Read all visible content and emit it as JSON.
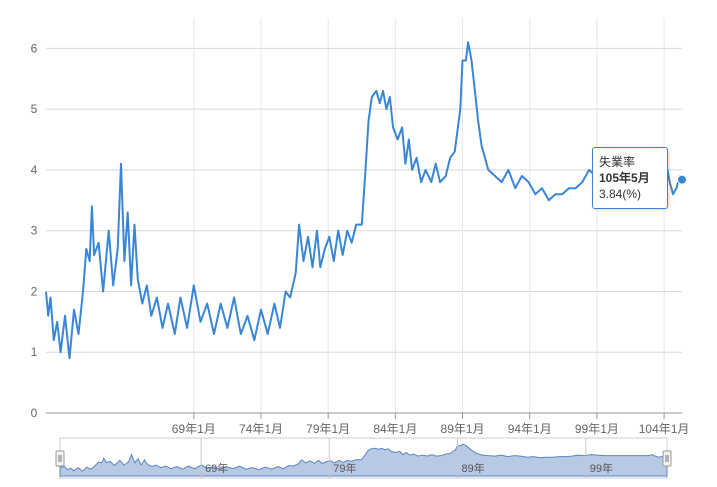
{
  "chart_data": {
    "type": "line",
    "x_start": "58年1月",
    "x_end": "105年5月",
    "x_ticks": [
      "69年1月",
      "74年1月",
      "79年1月",
      "84年1月",
      "89年1月",
      "94年1月",
      "99年1月",
      "104年1月"
    ],
    "y_ticks": [
      "0",
      "1",
      "2",
      "3",
      "4",
      "5",
      "6"
    ],
    "ylim": [
      0,
      6.5
    ],
    "grid": true,
    "series": [
      {
        "name": "失業率",
        "color": "#3a86d6",
        "points": [
          [
            "58年1月",
            2.0
          ],
          [
            "58年3月",
            1.6
          ],
          [
            "58年5月",
            1.9
          ],
          [
            "58年8月",
            1.2
          ],
          [
            "58年11月",
            1.5
          ],
          [
            "59年2月",
            1.0
          ],
          [
            "59年6月",
            1.6
          ],
          [
            "59年10月",
            0.9
          ],
          [
            "60年2月",
            1.7
          ],
          [
            "60年6月",
            1.3
          ],
          [
            "60年10月",
            2.0
          ],
          [
            "61年1月",
            2.7
          ],
          [
            "61年4月",
            2.5
          ],
          [
            "61年6月",
            3.4
          ],
          [
            "61年8月",
            2.6
          ],
          [
            "61年12月",
            2.8
          ],
          [
            "62年4月",
            2.0
          ],
          [
            "62年9月",
            3.0
          ],
          [
            "63年1月",
            2.1
          ],
          [
            "63年5月",
            2.7
          ],
          [
            "63年8月",
            4.1
          ],
          [
            "63年11月",
            2.5
          ],
          [
            "64年2月",
            3.3
          ],
          [
            "64年5月",
            2.1
          ],
          [
            "64年8月",
            3.1
          ],
          [
            "64年11月",
            2.2
          ],
          [
            "65年3月",
            1.8
          ],
          [
            "65年7月",
            2.1
          ],
          [
            "65年11月",
            1.6
          ],
          [
            "66年4月",
            1.9
          ],
          [
            "66年9月",
            1.4
          ],
          [
            "67年2月",
            1.8
          ],
          [
            "67年8月",
            1.3
          ],
          [
            "68年1月",
            1.9
          ],
          [
            "68年7月",
            1.4
          ],
          [
            "69年1月",
            2.1
          ],
          [
            "69年7月",
            1.5
          ],
          [
            "70年1月",
            1.8
          ],
          [
            "70年7月",
            1.3
          ],
          [
            "71年1月",
            1.8
          ],
          [
            "71年7月",
            1.4
          ],
          [
            "72年1月",
            1.9
          ],
          [
            "72年7月",
            1.3
          ],
          [
            "73年1月",
            1.6
          ],
          [
            "73年7月",
            1.2
          ],
          [
            "74年1月",
            1.7
          ],
          [
            "74年7月",
            1.3
          ],
          [
            "75年1月",
            1.8
          ],
          [
            "75年6月",
            1.4
          ],
          [
            "75年11月",
            2.0
          ],
          [
            "76年3月",
            1.9
          ],
          [
            "76年8月",
            2.3
          ],
          [
            "76年11月",
            3.1
          ],
          [
            "77年3月",
            2.5
          ],
          [
            "77年7月",
            2.9
          ],
          [
            "77年11月",
            2.4
          ],
          [
            "78年3月",
            3.0
          ],
          [
            "78年6月",
            2.4
          ],
          [
            "78年10月",
            2.7
          ],
          [
            "79年2月",
            2.9
          ],
          [
            "79年6月",
            2.5
          ],
          [
            "79年10月",
            3.0
          ],
          [
            "80年2月",
            2.6
          ],
          [
            "80年6月",
            3.0
          ],
          [
            "80年10月",
            2.8
          ],
          [
            "81年2月",
            3.1
          ],
          [
            "81年7月",
            3.1
          ],
          [
            "81年10月",
            3.9
          ],
          [
            "82年1月",
            4.8
          ],
          [
            "82年4月",
            5.2
          ],
          [
            "82年8月",
            5.3
          ],
          [
            "82年11月",
            5.1
          ],
          [
            "83年2月",
            5.3
          ],
          [
            "83年5月",
            5.0
          ],
          [
            "83年8月",
            5.2
          ],
          [
            "83年11月",
            4.7
          ],
          [
            "84年3月",
            4.5
          ],
          [
            "84年7月",
            4.7
          ],
          [
            "84年10月",
            4.1
          ],
          [
            "85年1月",
            4.5
          ],
          [
            "85年4月",
            4.0
          ],
          [
            "85年8月",
            4.2
          ],
          [
            "85年12月",
            3.8
          ],
          [
            "86年4月",
            4.0
          ],
          [
            "86年9月",
            3.8
          ],
          [
            "87年1月",
            4.1
          ],
          [
            "87年5月",
            3.8
          ],
          [
            "87年10月",
            3.9
          ],
          [
            "88年2月",
            4.2
          ],
          [
            "88年6月",
            4.3
          ],
          [
            "88年11月",
            5.0
          ],
          [
            "89年1月",
            5.8
          ],
          [
            "89年4月",
            5.8
          ],
          [
            "89年6月",
            6.1
          ],
          [
            "89年9月",
            5.8
          ],
          [
            "89年12月",
            5.3
          ],
          [
            "90年3月",
            4.8
          ],
          [
            "90年6月",
            4.4
          ],
          [
            "90年9月",
            4.2
          ],
          [
            "90年12月",
            4.0
          ],
          [
            "91年6月",
            3.9
          ],
          [
            "91年12月",
            3.8
          ],
          [
            "92年6月",
            4.0
          ],
          [
            "92年12月",
            3.7
          ],
          [
            "93年6月",
            3.9
          ],
          [
            "93年12月",
            3.8
          ],
          [
            "94年6月",
            3.6
          ],
          [
            "94年12月",
            3.7
          ],
          [
            "95年6月",
            3.5
          ],
          [
            "95年12月",
            3.6
          ],
          [
            "96年6月",
            3.6
          ],
          [
            "96年12月",
            3.7
          ],
          [
            "97年6月",
            3.7
          ],
          [
            "97年12月",
            3.8
          ],
          [
            "98年6月",
            4.0
          ],
          [
            "98年12月",
            3.9
          ],
          [
            "99年6月",
            4.1
          ],
          [
            "99年12月",
            4.0
          ],
          [
            "100年6月",
            3.9
          ],
          [
            "100年12月",
            3.9
          ],
          [
            "101年6月",
            3.9
          ],
          [
            "101年12月",
            3.9
          ],
          [
            "102年6月",
            3.9
          ],
          [
            "102年12月",
            3.9
          ],
          [
            "103年6月",
            3.9
          ],
          [
            "103年12月",
            3.9
          ],
          [
            "104年3月",
            4.1
          ],
          [
            "104年6月",
            3.8
          ],
          [
            "104年9月",
            3.6
          ],
          [
            "104年12月",
            3.7
          ],
          [
            "105年3月",
            3.9
          ],
          [
            "105年5月",
            3.84
          ]
        ]
      }
    ],
    "tooltip": {
      "series_name": "失業率",
      "date": "105年5月",
      "value_text": "3.84(%)"
    },
    "navigator": {
      "labels": [
        "69年",
        "79年",
        "89年",
        "99年"
      ],
      "fill_color": "#b8c9e3",
      "line_color": "#5b86c4"
    }
  }
}
